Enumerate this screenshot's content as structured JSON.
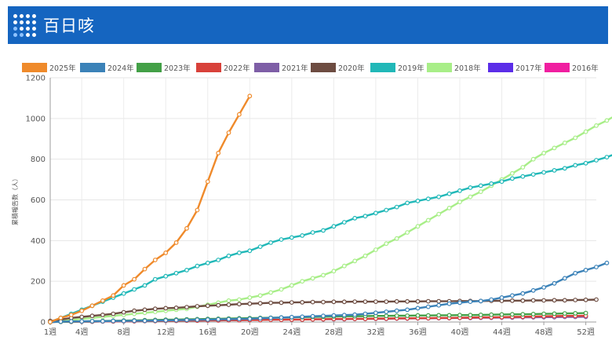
{
  "page": {
    "title": "百日咳"
  },
  "chart_data": {
    "type": "line",
    "ylabel": "累積報告数（人）",
    "ylim": [
      0,
      1200
    ],
    "yticks": [
      0,
      200,
      400,
      600,
      800,
      1000,
      1200
    ],
    "xticks": [
      {
        "week": 1,
        "label": "1週"
      },
      {
        "week": 4,
        "label": "4週"
      },
      {
        "week": 8,
        "label": "8週"
      },
      {
        "week": 12,
        "label": "12週"
      },
      {
        "week": 16,
        "label": "16週"
      },
      {
        "week": 20,
        "label": "20週"
      },
      {
        "week": 24,
        "label": "24週"
      },
      {
        "week": 28,
        "label": "28週"
      },
      {
        "week": 32,
        "label": "32週"
      },
      {
        "week": 36,
        "label": "36週"
      },
      {
        "week": 40,
        "label": "40週"
      },
      {
        "week": 44,
        "label": "44週"
      },
      {
        "week": 48,
        "label": "48週"
      },
      {
        "week": 52,
        "label": "52週"
      }
    ],
    "xlim": [
      1,
      53
    ],
    "grid": true,
    "legend_position": "top",
    "series": [
      {
        "name": "2025年",
        "color": "#ef8a2b",
        "start_week": 1,
        "values": [
          0,
          20,
          35,
          55,
          80,
          105,
          130,
          180,
          210,
          260,
          305,
          340,
          390,
          460,
          550,
          690,
          830,
          930,
          1020,
          1110
        ]
      },
      {
        "name": "2024年",
        "color": "#3b82b8",
        "start_week": 1,
        "values": [
          0,
          2,
          3,
          3,
          4,
          4,
          5,
          5,
          6,
          6,
          7,
          8,
          9,
          10,
          11,
          12,
          13,
          14,
          15,
          16,
          18,
          20,
          22,
          24,
          26,
          28,
          30,
          32,
          34,
          36,
          40,
          45,
          50,
          55,
          60,
          68,
          75,
          82,
          90,
          95,
          100,
          103,
          110,
          120,
          130,
          140,
          155,
          170,
          190,
          215,
          240,
          255,
          270,
          290
        ]
      },
      {
        "name": "2023年",
        "color": "#43a047",
        "start_week": 1,
        "values": [
          0,
          1,
          2,
          3,
          4,
          5,
          6,
          7,
          8,
          9,
          10,
          11,
          12,
          13,
          14,
          15,
          16,
          17,
          18,
          19,
          20,
          21,
          22,
          23,
          24,
          25,
          26,
          27,
          28,
          28,
          29,
          30,
          30,
          31,
          31,
          32,
          32,
          33,
          33,
          34,
          34,
          35,
          36,
          37,
          38,
          38,
          39,
          40,
          41,
          42,
          43,
          44
        ]
      },
      {
        "name": "2022年",
        "color": "#d8413a",
        "start_week": 1,
        "values": [
          0,
          1,
          1,
          2,
          2,
          3,
          3,
          4,
          4,
          5,
          5,
          6,
          6,
          7,
          7,
          8,
          8,
          9,
          9,
          10,
          10,
          11,
          11,
          12,
          12,
          13,
          14,
          15,
          15,
          16,
          16,
          17,
          17,
          18,
          18,
          19,
          19,
          20,
          20,
          21,
          22,
          23,
          23,
          24,
          25,
          26,
          27,
          28,
          29,
          30,
          30,
          31
        ]
      },
      {
        "name": "2021年",
        "color": "#7e5ea6",
        "start_week": 1,
        "values": [
          0,
          1,
          1,
          2,
          2,
          3,
          3,
          4,
          4,
          5,
          5,
          6,
          6,
          7,
          7,
          8,
          8,
          9,
          9,
          10,
          10,
          11,
          11,
          12,
          12,
          13,
          13,
          14,
          14,
          15,
          15,
          16,
          16,
          17,
          17,
          18,
          18,
          19,
          19,
          20,
          20,
          21,
          21,
          22,
          22,
          23,
          23,
          24,
          24,
          25,
          25,
          26
        ]
      },
      {
        "name": "2020年",
        "color": "#6d4c41",
        "start_week": 1,
        "values": [
          5,
          12,
          20,
          25,
          30,
          35,
          40,
          48,
          55,
          60,
          65,
          68,
          70,
          73,
          77,
          80,
          82,
          85,
          88,
          90,
          92,
          94,
          95,
          96,
          97,
          98,
          98,
          99,
          99,
          100,
          100,
          100,
          100,
          101,
          101,
          101,
          102,
          102,
          102,
          103,
          103,
          103,
          104,
          104,
          105,
          105,
          106,
          106,
          107,
          107,
          108,
          109,
          110
        ]
      },
      {
        "name": "2019年",
        "color": "#21b8b8",
        "start_week": 1,
        "values": [
          0,
          20,
          40,
          60,
          80,
          100,
          120,
          140,
          160,
          180,
          210,
          225,
          240,
          255,
          275,
          290,
          305,
          325,
          340,
          350,
          370,
          390,
          405,
          415,
          425,
          440,
          450,
          470,
          490,
          510,
          520,
          535,
          550,
          565,
          585,
          595,
          605,
          615,
          630,
          645,
          660,
          670,
          680,
          690,
          705,
          715,
          725,
          735,
          745,
          755,
          770,
          780,
          795,
          810,
          830
        ]
      },
      {
        "name": "2018年",
        "color": "#a8ee88",
        "start_week": 1,
        "values": [
          0,
          5,
          10,
          15,
          20,
          25,
          30,
          35,
          40,
          45,
          50,
          55,
          60,
          65,
          75,
          85,
          95,
          105,
          110,
          120,
          130,
          145,
          160,
          180,
          200,
          215,
          230,
          250,
          275,
          300,
          325,
          355,
          385,
          410,
          440,
          470,
          500,
          530,
          560,
          590,
          615,
          640,
          670,
          700,
          730,
          760,
          800,
          830,
          855,
          880,
          905,
          935,
          965,
          990,
          1020,
          1045,
          1065
        ]
      },
      {
        "name": "2017年",
        "color": "#5b2de8",
        "start_week": 1,
        "values": []
      },
      {
        "name": "2016年",
        "color": "#f01ea0",
        "start_week": 1,
        "values": []
      }
    ]
  }
}
